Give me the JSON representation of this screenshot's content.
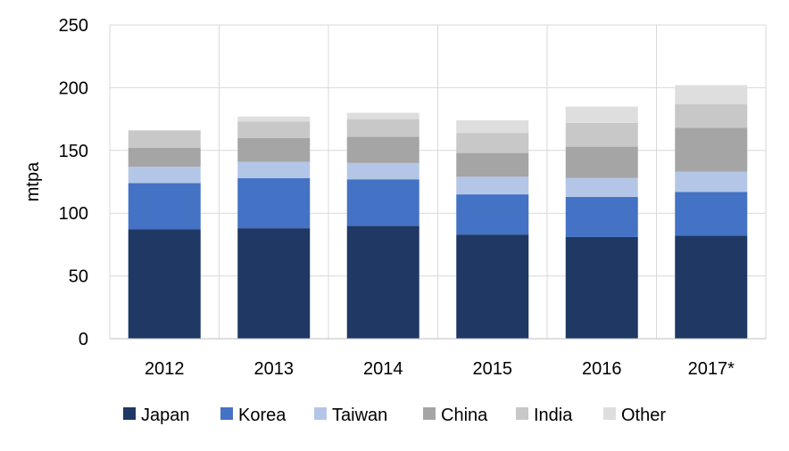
{
  "chart_data": {
    "type": "bar",
    "stacked": true,
    "title": "",
    "xlabel": "",
    "ylabel": "mtpa",
    "ylim": [
      0,
      250
    ],
    "yticks": [
      0,
      50,
      100,
      150,
      200,
      250
    ],
    "grid": true,
    "legend_position": "bottom",
    "categories": [
      "2012",
      "2013",
      "2014",
      "2015",
      "2016",
      "2017*"
    ],
    "series": [
      {
        "name": "Japan",
        "color": "#1f3864",
        "values": [
          87,
          88,
          90,
          83,
          81,
          82
        ]
      },
      {
        "name": "Korea",
        "color": "#4472c4",
        "values": [
          37,
          40,
          37,
          32,
          32,
          35
        ]
      },
      {
        "name": "Taiwan",
        "color": "#b4c6e7",
        "values": [
          13,
          13,
          13,
          14,
          15,
          16
        ]
      },
      {
        "name": "China",
        "color": "#a5a5a5",
        "values": [
          15,
          19,
          21,
          19,
          25,
          35
        ]
      },
      {
        "name": "India",
        "color": "#c8c8c8",
        "values": [
          14,
          13,
          14,
          16,
          19,
          19
        ]
      },
      {
        "name": "Other",
        "color": "#dedede",
        "values": [
          0,
          4,
          5,
          10,
          13,
          15
        ]
      }
    ]
  }
}
